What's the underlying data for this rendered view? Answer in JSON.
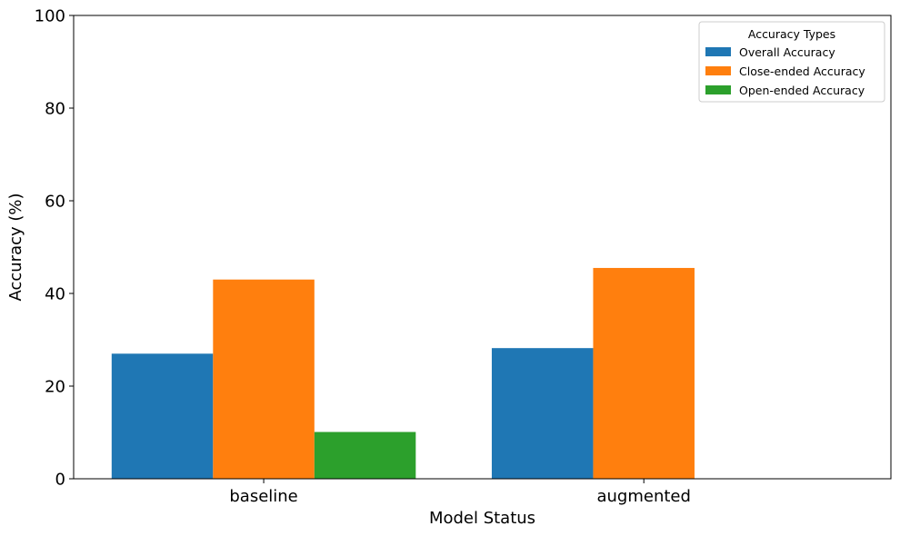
{
  "chart_data": {
    "type": "bar",
    "title": "",
    "xlabel": "Model Status",
    "ylabel": "Accuracy (%)",
    "categories": [
      "baseline",
      "augmented"
    ],
    "ylim": [
      0,
      100
    ],
    "yticks": [
      0,
      20,
      40,
      60,
      80,
      100
    ],
    "grid": false,
    "legend": {
      "title": "Accuracy Types",
      "placement": "top-right"
    },
    "series": [
      {
        "name": "Overall Accuracy",
        "color": "#1f77b4",
        "values": [
          27.0,
          28.2
        ]
      },
      {
        "name": "Close-ended Accuracy",
        "color": "#ff7f0e",
        "values": [
          43.0,
          45.5
        ]
      },
      {
        "name": "Open-ended Accuracy",
        "color": "#2ca02c",
        "values": [
          10.1,
          0
        ]
      }
    ]
  }
}
